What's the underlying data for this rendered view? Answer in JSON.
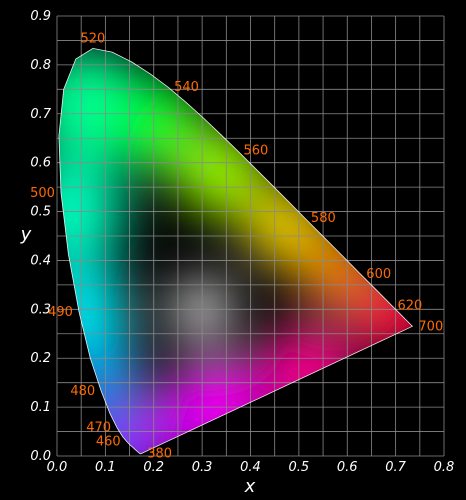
{
  "chart_data": {
    "type": "chromaticity-diagram",
    "xlabel": "x",
    "ylabel": "y",
    "xlim": [
      0,
      0.8
    ],
    "ylim": [
      0,
      0.9
    ],
    "grid": true,
    "x_ticks": [
      "0.0",
      "0.1",
      "0.2",
      "0.3",
      "0.4",
      "0.5",
      "0.6",
      "0.7",
      "0.8"
    ],
    "y_ticks": [
      "0.0",
      "0.1",
      "0.2",
      "0.3",
      "0.4",
      "0.5",
      "0.6",
      "0.7",
      "0.8",
      "0.9"
    ],
    "colors": {
      "background": "#000000",
      "grid": "#8a8a8a",
      "tick_labels": "#ffffff",
      "wavelength_labels": "#ff6a00"
    },
    "spectral_locus": [
      [
        0.1741,
        0.005
      ],
      [
        0.174,
        0.005
      ],
      [
        0.1738,
        0.0049
      ],
      [
        0.1736,
        0.0049
      ],
      [
        0.1733,
        0.0048
      ],
      [
        0.173,
        0.0048
      ],
      [
        0.1726,
        0.0048
      ],
      [
        0.1721,
        0.0048
      ],
      [
        0.1714,
        0.0051
      ],
      [
        0.1703,
        0.0058
      ],
      [
        0.1689,
        0.0069
      ],
      [
        0.1669,
        0.0086
      ],
      [
        0.1644,
        0.0109
      ],
      [
        0.1611,
        0.0138
      ],
      [
        0.1566,
        0.0177
      ],
      [
        0.151,
        0.0227
      ],
      [
        0.144,
        0.0297
      ],
      [
        0.1355,
        0.0399
      ],
      [
        0.1241,
        0.0578
      ],
      [
        0.1096,
        0.0868
      ],
      [
        0.0913,
        0.1327
      ],
      [
        0.0687,
        0.2007
      ],
      [
        0.0454,
        0.295
      ],
      [
        0.0235,
        0.4127
      ],
      [
        0.0082,
        0.5384
      ],
      [
        0.0039,
        0.6548
      ],
      [
        0.0139,
        0.7502
      ],
      [
        0.0389,
        0.812
      ],
      [
        0.0743,
        0.8338
      ],
      [
        0.1142,
        0.8262
      ],
      [
        0.1547,
        0.8059
      ],
      [
        0.1929,
        0.7816
      ],
      [
        0.2296,
        0.7543
      ],
      [
        0.2658,
        0.7243
      ],
      [
        0.3016,
        0.6923
      ],
      [
        0.3373,
        0.6589
      ],
      [
        0.3731,
        0.6245
      ],
      [
        0.4087,
        0.5896
      ],
      [
        0.4441,
        0.5547
      ],
      [
        0.4788,
        0.5202
      ],
      [
        0.5125,
        0.4866
      ],
      [
        0.5448,
        0.4544
      ],
      [
        0.5752,
        0.4242
      ],
      [
        0.6029,
        0.3965
      ],
      [
        0.627,
        0.3725
      ],
      [
        0.6482,
        0.3514
      ],
      [
        0.6658,
        0.334
      ],
      [
        0.6801,
        0.3197
      ],
      [
        0.6915,
        0.3083
      ],
      [
        0.7006,
        0.2993
      ],
      [
        0.7079,
        0.292
      ],
      [
        0.714,
        0.2859
      ],
      [
        0.719,
        0.2809
      ],
      [
        0.723,
        0.277
      ],
      [
        0.726,
        0.274
      ],
      [
        0.7283,
        0.2717
      ],
      [
        0.73,
        0.27
      ],
      [
        0.7311,
        0.2689
      ],
      [
        0.732,
        0.268
      ],
      [
        0.7327,
        0.2673
      ],
      [
        0.7334,
        0.2666
      ],
      [
        0.734,
        0.266
      ],
      [
        0.7344,
        0.2656
      ],
      [
        0.7346,
        0.2654
      ],
      [
        0.7347,
        0.2653
      ]
    ],
    "wavelength_labels": [
      {
        "label": "380",
        "x": 0.1741,
        "y": 0.005,
        "anchor": "right"
      },
      {
        "label": "460",
        "x": 0.144,
        "y": 0.0297,
        "anchor": "left"
      },
      {
        "label": "470",
        "x": 0.1241,
        "y": 0.0578,
        "anchor": "left"
      },
      {
        "label": "480",
        "x": 0.0913,
        "y": 0.1327,
        "anchor": "left"
      },
      {
        "label": "490",
        "x": 0.0454,
        "y": 0.295,
        "anchor": "left"
      },
      {
        "label": "500",
        "x": 0.0082,
        "y": 0.5384,
        "anchor": "left"
      },
      {
        "label": "520",
        "x": 0.0743,
        "y": 0.8338,
        "anchor": "top"
      },
      {
        "label": "540",
        "x": 0.2296,
        "y": 0.7543,
        "anchor": "right"
      },
      {
        "label": "560",
        "x": 0.3731,
        "y": 0.6245,
        "anchor": "right"
      },
      {
        "label": "580",
        "x": 0.5125,
        "y": 0.4866,
        "anchor": "right"
      },
      {
        "label": "600",
        "x": 0.627,
        "y": 0.3725,
        "anchor": "right"
      },
      {
        "label": "620",
        "x": 0.6915,
        "y": 0.3083,
        "anchor": "right"
      },
      {
        "label": "700",
        "x": 0.7347,
        "y": 0.2653,
        "anchor": "right"
      }
    ]
  }
}
